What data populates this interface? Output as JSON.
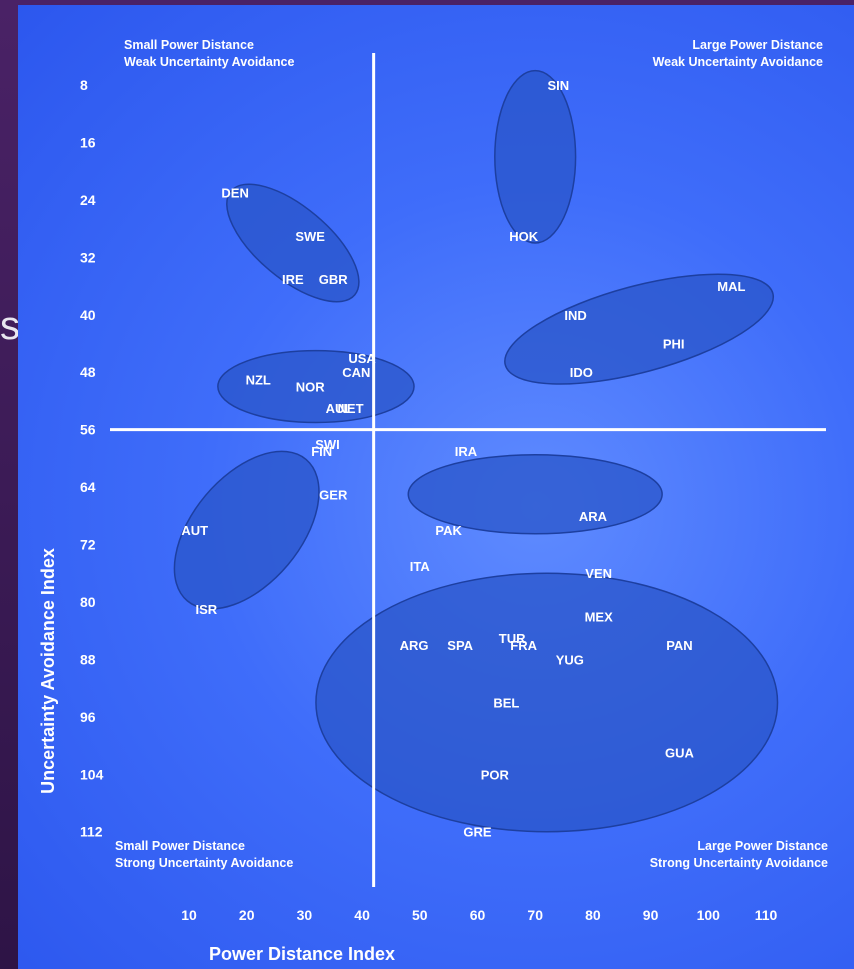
{
  "side_text": "s",
  "chart_data": {
    "type": "scatter",
    "xlabel": "Power Distance Index",
    "ylabel": "Uncertainty Avoidance Index",
    "x_ticks": [
      "10",
      "20",
      "30",
      "40",
      "50",
      "60",
      "70",
      "80",
      "90",
      "100",
      "110"
    ],
    "y_ticks": [
      "8",
      "16",
      "24",
      "32",
      "40",
      "48",
      "56",
      "64",
      "72",
      "80",
      "88",
      "96",
      "104",
      "112"
    ],
    "y_axis_reversed": true,
    "grid": false,
    "divider": {
      "x": 42,
      "y": 56
    },
    "quadrants": {
      "top_left": [
        "Small Power Distance",
        "Weak Uncertainty Avoidance"
      ],
      "top_right": [
        "Large Power Distance",
        "Weak Uncertainty Avoidance"
      ],
      "bottom_left": [
        "Small Power Distance",
        "Strong Uncertainty Avoidance"
      ],
      "bottom_right": [
        "Large  Power Distance",
        "Strong Uncertainty Avoidance"
      ]
    },
    "points": [
      {
        "label": "SIN",
        "x": 74,
        "y": 8
      },
      {
        "label": "DEN",
        "x": 18,
        "y": 23
      },
      {
        "label": "SWE",
        "x": 31,
        "y": 29
      },
      {
        "label": "HOK",
        "x": 68,
        "y": 29
      },
      {
        "label": "IRE",
        "x": 28,
        "y": 35
      },
      {
        "label": "GBR",
        "x": 35,
        "y": 35
      },
      {
        "label": "MAL",
        "x": 104,
        "y": 36
      },
      {
        "label": "IND",
        "x": 77,
        "y": 40
      },
      {
        "label": "PHI",
        "x": 94,
        "y": 44
      },
      {
        "label": "USA",
        "x": 40,
        "y": 46
      },
      {
        "label": "CAN",
        "x": 39,
        "y": 48
      },
      {
        "label": "IDO",
        "x": 78,
        "y": 48
      },
      {
        "label": "NZL",
        "x": 22,
        "y": 49
      },
      {
        "label": "NOR",
        "x": 31,
        "y": 50
      },
      {
        "label": "AUL",
        "x": 36,
        "y": 53
      },
      {
        "label": "NET",
        "x": 38,
        "y": 53
      },
      {
        "label": "SWI",
        "x": 34,
        "y": 58
      },
      {
        "label": "FIN",
        "x": 33,
        "y": 59
      },
      {
        "label": "IRA",
        "x": 58,
        "y": 59
      },
      {
        "label": "GER",
        "x": 35,
        "y": 65
      },
      {
        "label": "ARA",
        "x": 80,
        "y": 68
      },
      {
        "label": "AUT",
        "x": 11,
        "y": 70
      },
      {
        "label": "PAK",
        "x": 55,
        "y": 70
      },
      {
        "label": "ITA",
        "x": 50,
        "y": 75
      },
      {
        "label": "VEN",
        "x": 81,
        "y": 76
      },
      {
        "label": "ISR",
        "x": 13,
        "y": 81
      },
      {
        "label": "MEX",
        "x": 81,
        "y": 82
      },
      {
        "label": "TUR",
        "x": 66,
        "y": 85
      },
      {
        "label": "PAN",
        "x": 95,
        "y": 86
      },
      {
        "label": "ARG",
        "x": 49,
        "y": 86
      },
      {
        "label": "SPA",
        "x": 57,
        "y": 86
      },
      {
        "label": "FRA",
        "x": 68,
        "y": 86
      },
      {
        "label": "YUG",
        "x": 76,
        "y": 88
      },
      {
        "label": "BEL",
        "x": 65,
        "y": 94
      },
      {
        "label": "GUA",
        "x": 95,
        "y": 101
      },
      {
        "label": "POR",
        "x": 63,
        "y": 104
      },
      {
        "label": "GRE",
        "x": 60,
        "y": 112
      }
    ],
    "clusters": [
      {
        "cx": 70,
        "cy": 18,
        "rx": 7,
        "ry": 12,
        "rot": 0
      },
      {
        "cx": 28,
        "cy": 30,
        "rx": 14,
        "ry": 5,
        "rot": 40
      },
      {
        "cx": 88,
        "cy": 42,
        "rx": 24,
        "ry": 6,
        "rot": -15
      },
      {
        "cx": 32,
        "cy": 50,
        "rx": 17,
        "ry": 5,
        "rot": 0
      },
      {
        "cx": 20,
        "cy": 70,
        "rx": 16,
        "ry": 7.5,
        "rot": -50
      },
      {
        "cx": 70,
        "cy": 65,
        "rx": 22,
        "ry": 5.5,
        "rot": 0
      },
      {
        "cx": 72,
        "cy": 94,
        "rx": 40,
        "ry": 18,
        "rot": 0
      }
    ]
  }
}
